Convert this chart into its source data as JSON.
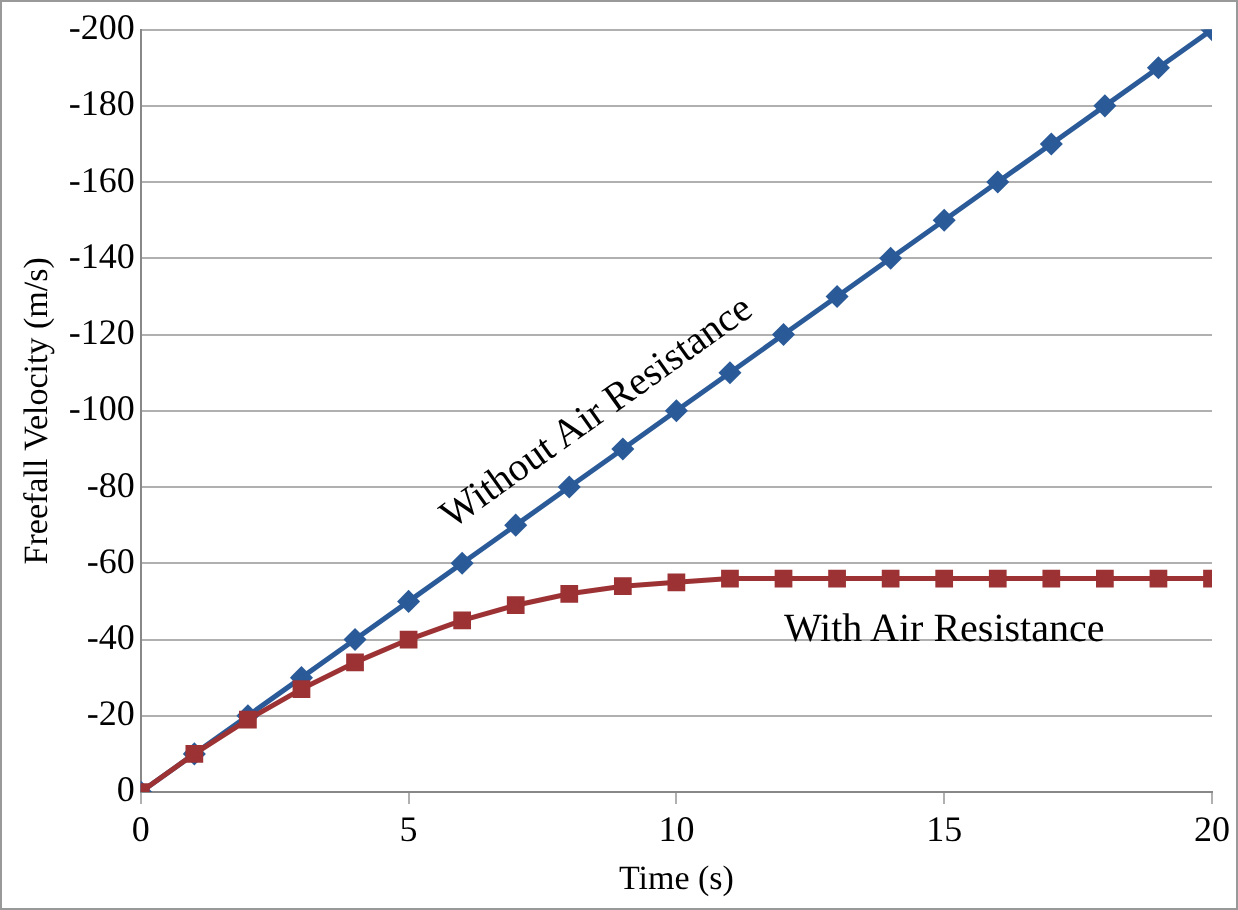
{
  "chart_data": {
    "type": "line",
    "xlabel": "Time (s)",
    "ylabel": "Freefall Velocity (m/s)",
    "x": [
      0,
      1,
      2,
      3,
      4,
      5,
      6,
      7,
      8,
      9,
      10,
      11,
      12,
      13,
      14,
      15,
      16,
      17,
      18,
      19,
      20
    ],
    "series": [
      {
        "name": "Without Air Resistance",
        "color": "#2a5a98",
        "marker": "diamond",
        "values": [
          0,
          -10,
          -20,
          -30,
          -40,
          -50,
          -60,
          -70,
          -80,
          -90,
          -100,
          -110,
          -120,
          -130,
          -140,
          -150,
          -160,
          -170,
          -180,
          -190,
          -200
        ]
      },
      {
        "name": "With Air Resistance",
        "color": "#9c3234",
        "marker": "square",
        "values": [
          0,
          -10,
          -19,
          -27,
          -34,
          -40,
          -45,
          -49,
          -52,
          -54,
          -55,
          -56,
          -56,
          -56,
          -56,
          -56,
          -56,
          -56,
          -56,
          -56,
          -56
        ]
      }
    ],
    "xlim": [
      0,
      20
    ],
    "xticks": [
      0,
      5,
      10,
      15,
      20
    ],
    "ylim": [
      0,
      -200
    ],
    "yticks": [
      0,
      -20,
      -40,
      -60,
      -80,
      -100,
      -120,
      -140,
      -160,
      -180,
      -200
    ],
    "grid": "y",
    "legend": false,
    "line_style": "solid"
  }
}
